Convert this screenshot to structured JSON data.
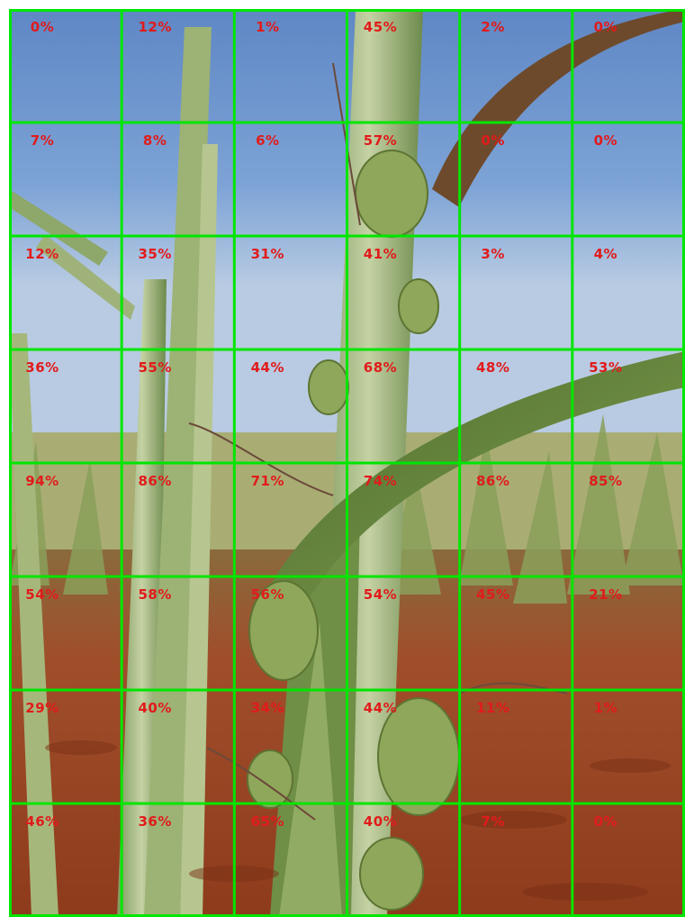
{
  "image": {
    "subject": "sugarcane-field-with-vine-weeds",
    "sky_color": "#6f97cf",
    "soil_color": "#9e4a2a",
    "grid_color": "#00e600",
    "label_color": "#e11b1b"
  },
  "grid": {
    "rows": 8,
    "cols": 6,
    "cells": [
      [
        "0%",
        "12%",
        "1%",
        "45%",
        "2%",
        "0%"
      ],
      [
        "7%",
        "8%",
        "6%",
        "57%",
        "0%",
        "0%"
      ],
      [
        "12%",
        "35%",
        "31%",
        "41%",
        "3%",
        "4%"
      ],
      [
        "36%",
        "55%",
        "44%",
        "68%",
        "48%",
        "53%"
      ],
      [
        "94%",
        "86%",
        "71%",
        "74%",
        "86%",
        "85%"
      ],
      [
        "54%",
        "58%",
        "56%",
        "54%",
        "45%",
        "21%"
      ],
      [
        "29%",
        "40%",
        "34%",
        "44%",
        "11%",
        "1%"
      ],
      [
        "46%",
        "36%",
        "65%",
        "40%",
        "7%",
        "0%"
      ]
    ]
  }
}
